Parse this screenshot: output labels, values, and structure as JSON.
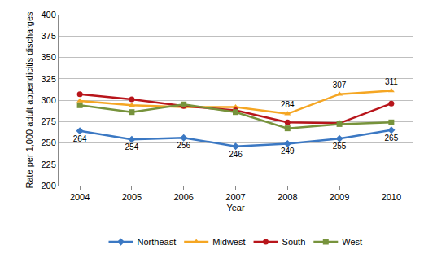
{
  "chart_data": {
    "type": "line",
    "x_label": "Year",
    "y_label": "Rate per 1,000 adult appendicitis discharges",
    "categories": [
      "2004",
      "2005",
      "2006",
      "2007",
      "2008",
      "2009",
      "2010"
    ],
    "series": [
      {
        "name": "Northeast",
        "color": "#3b78c3",
        "marker": "diamond",
        "data_labels": true,
        "values": [
          264,
          254,
          256,
          246,
          249,
          255,
          265
        ]
      },
      {
        "name": "Midwest",
        "color": "#f5a623",
        "marker": "triangle-up",
        "values": [
          299,
          294,
          292,
          292,
          284,
          307,
          311
        ],
        "value_labels": [
          null,
          null,
          null,
          null,
          "284",
          "307",
          "311"
        ]
      },
      {
        "name": "South",
        "color": "#b8151b",
        "marker": "circle",
        "values": [
          307,
          301,
          293,
          288,
          274,
          273,
          296
        ]
      },
      {
        "name": "West",
        "color": "#77933c",
        "marker": "square",
        "values": [
          294,
          286,
          295,
          286,
          267,
          272,
          274
        ]
      }
    ],
    "ylim": [
      200,
      400
    ],
    "yticks": [
      200,
      225,
      250,
      275,
      300,
      325,
      350,
      375,
      400
    ],
    "grid": true,
    "legend": "bottom"
  }
}
